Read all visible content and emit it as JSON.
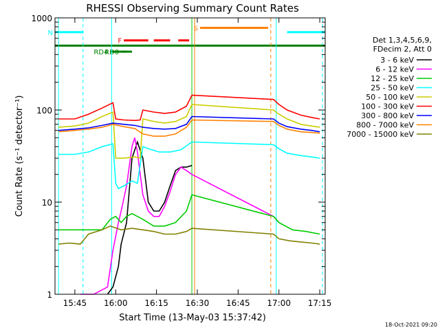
{
  "chart_data": {
    "type": "line",
    "title": "RHESSI Observing Summary Count Rates",
    "xlabel": "Start Time (13-May-03 15:37:42)",
    "ylabel": "Count Rate (s⁻¹ detector⁻¹)",
    "y_scale": "log",
    "ylim": [
      1,
      1000
    ],
    "xlim": [
      "15:37:42",
      "17:17:00"
    ],
    "x_ticks": [
      "15:45",
      "16:00",
      "16:15",
      "16:30",
      "16:45",
      "17:00",
      "17:15"
    ],
    "y_ticks": [
      "1",
      "10",
      "100",
      "1000"
    ],
    "timestamp": "18-Oct-2021 09:20",
    "legend_header": [
      "Det 1,3,4,5,6,9,",
      "FDecim 2, Att 0"
    ],
    "series": [
      {
        "name": "3 - 6 keV",
        "color": "#000000",
        "x": [
          "15:57",
          "15:59",
          "16:01",
          "16:02",
          "16:04",
          "16:06",
          "16:08",
          "16:10",
          "16:12",
          "16:14",
          "16:16",
          "16:18",
          "16:20",
          "16:22",
          "16:24",
          "16:26",
          "16:28"
        ],
        "y": [
          1,
          1.2,
          2,
          3.5,
          6,
          30,
          45,
          30,
          10,
          8,
          8,
          10,
          15,
          22,
          24,
          24,
          25
        ]
      },
      {
        "name": "6 - 12 keV",
        "color": "#ff00ff",
        "x": [
          "15:47",
          "15:52",
          "15:57",
          "15:59",
          "16:01",
          "16:02",
          "16:04",
          "16:06",
          "16:07",
          "16:08",
          "16:10",
          "16:12",
          "16:14",
          "16:16",
          "16:18",
          "16:20",
          "16:22",
          "16:24",
          "16:26",
          "16:28",
          "16:58",
          "16:59",
          "17:00"
        ],
        "y": [
          1,
          1,
          1.2,
          3,
          6,
          8,
          15,
          40,
          50,
          35,
          12,
          8,
          7,
          7,
          9,
          13,
          20,
          24,
          22,
          20,
          7,
          6.5,
          6
        ]
      },
      {
        "name": "12 - 25 keV",
        "color": "#00cc00",
        "x": [
          "15:39",
          "15:45",
          "15:50",
          "15:55",
          "15:58",
          "16:00",
          "16:02",
          "16:04",
          "16:06",
          "16:08",
          "16:10",
          "16:14",
          "16:18",
          "16:22",
          "16:26",
          "16:28",
          "16:58",
          "17:00",
          "17:05",
          "17:10",
          "17:15"
        ],
        "y": [
          5,
          5,
          5,
          5,
          6.5,
          7,
          6,
          7,
          7.5,
          7,
          6.5,
          5.5,
          5.5,
          6,
          8,
          12,
          7,
          6,
          5,
          4.8,
          4.5
        ]
      },
      {
        "name": "25 - 50 keV",
        "color": "#00ffff",
        "x": [
          "15:39",
          "15:45",
          "15:50",
          "15:55",
          "15:59",
          "16:00",
          "16:01",
          "16:03",
          "16:06",
          "16:08",
          "16:10",
          "16:12",
          "16:16",
          "16:20",
          "16:24",
          "16:28",
          "16:58",
          "17:00",
          "17:03",
          "17:08",
          "17:12",
          "17:15"
        ],
        "y": [
          33,
          33,
          35,
          40,
          43,
          16,
          14,
          15,
          17,
          16,
          40,
          38,
          35,
          35,
          37,
          45,
          42,
          38,
          34,
          32,
          31,
          30
        ]
      },
      {
        "name": "50 - 100 keV",
        "color": "#cccc00",
        "x": [
          "15:39",
          "15:45",
          "15:50",
          "15:55",
          "15:59",
          "16:00",
          "16:03",
          "16:07",
          "16:09",
          "16:10",
          "16:14",
          "16:18",
          "16:22",
          "16:26",
          "16:28",
          "16:58",
          "17:00",
          "17:03",
          "17:08",
          "17:12",
          "17:15"
        ],
        "y": [
          65,
          67,
          72,
          85,
          95,
          30,
          30,
          31,
          30,
          80,
          75,
          72,
          75,
          85,
          115,
          100,
          90,
          80,
          70,
          67,
          65
        ]
      },
      {
        "name": "100 - 300 keV",
        "color": "#ff0000",
        "x": [
          "15:39",
          "15:45",
          "15:50",
          "15:55",
          "15:59",
          "16:00",
          "16:03",
          "16:07",
          "16:09",
          "16:10",
          "16:14",
          "16:18",
          "16:22",
          "16:26",
          "16:28",
          "16:58",
          "17:00",
          "17:03",
          "17:08",
          "17:12",
          "17:15"
        ],
        "y": [
          80,
          80,
          90,
          105,
          120,
          80,
          78,
          77,
          78,
          100,
          95,
          92,
          95,
          110,
          145,
          130,
          115,
          100,
          88,
          83,
          80
        ]
      },
      {
        "name": "300 - 800 keV",
        "color": "#0000ff",
        "x": [
          "15:39",
          "15:45",
          "15:50",
          "15:55",
          "15:59",
          "16:03",
          "16:07",
          "16:10",
          "16:14",
          "16:18",
          "16:22",
          "16:26",
          "16:28",
          "16:58",
          "17:00",
          "17:03",
          "17:08",
          "17:12",
          "17:15"
        ],
        "y": [
          60,
          62,
          64,
          68,
          72,
          70,
          68,
          65,
          63,
          62,
          63,
          70,
          85,
          80,
          72,
          66,
          62,
          60,
          58
        ]
      },
      {
        "name": "800 - 7000 keV",
        "color": "#ff8000",
        "x": [
          "15:39",
          "15:45",
          "15:50",
          "15:55",
          "15:59",
          "16:03",
          "16:07",
          "16:10",
          "16:14",
          "16:18",
          "16:22",
          "16:26",
          "16:28",
          "16:58",
          "17:00",
          "17:03",
          "17:08",
          "17:12",
          "17:15"
        ],
        "y": [
          58,
          60,
          62,
          65,
          70,
          66,
          63,
          55,
          52,
          52,
          55,
          65,
          78,
          75,
          68,
          62,
          58,
          57,
          56
        ]
      },
      {
        "name": "7000 - 15000 keV",
        "color": "#808000",
        "x": [
          "15:39",
          "15:43",
          "15:47",
          "15:50",
          "15:55",
          "15:58",
          "16:02",
          "16:06",
          "16:10",
          "16:14",
          "16:18",
          "16:22",
          "16:26",
          "16:28",
          "16:58",
          "17:00",
          "17:04",
          "17:08",
          "17:12",
          "17:15"
        ],
        "y": [
          3.5,
          3.6,
          3.5,
          4.5,
          5,
          5.5,
          5,
          5.2,
          5,
          4.8,
          4.5,
          4.5,
          4.8,
          5.2,
          4.5,
          4,
          3.8,
          3.7,
          3.6,
          3.5
        ]
      }
    ],
    "flag_bars": [
      {
        "label": "N",
        "color": "#00ffff",
        "y": 700,
        "segments": [
          [
            "15:37:42",
            "15:48"
          ],
          [
            "17:03",
            "17:17"
          ]
        ]
      },
      {
        "label": "S",
        "color": "#ff8000",
        "y": 780,
        "segments": [
          [
            "16:31",
            "16:56"
          ]
        ]
      },
      {
        "label": "F",
        "color": "#ff0000",
        "y": 570,
        "segments": [
          [
            "16:03",
            "16:12"
          ],
          [
            "16:14",
            "16:20"
          ],
          [
            "16:23",
            "16:27"
          ]
        ]
      },
      {
        "label": "RD0",
        "color": "#008000",
        "y": 430,
        "segments": [
          [
            "16:02",
            "16:04"
          ]
        ]
      },
      {
        "label": "RD4",
        "color": "#008000",
        "y": 430,
        "segments": [
          [
            "15:58",
            "16:06"
          ]
        ]
      },
      {
        "label": "",
        "color": "#008000",
        "y": 500,
        "segments": [
          [
            "15:37:42",
            "17:17"
          ]
        ]
      }
    ],
    "vlines": [
      {
        "x": "15:39",
        "color": "#00ffff",
        "style": "solid"
      },
      {
        "x": "15:48",
        "color": "#00ffff",
        "style": "dashed"
      },
      {
        "x": "15:58:30",
        "color": "#00ffff",
        "style": "solid"
      },
      {
        "x": "16:28",
        "color": "#00cc00",
        "style": "solid"
      },
      {
        "x": "16:29",
        "color": "#ff8000",
        "style": "solid"
      },
      {
        "x": "16:57",
        "color": "#ff8000",
        "style": "dashed"
      },
      {
        "x": "16:59",
        "color": "#00ffff",
        "style": "solid"
      },
      {
        "x": "17:16",
        "color": "#00ffff",
        "style": "dashed"
      }
    ]
  }
}
